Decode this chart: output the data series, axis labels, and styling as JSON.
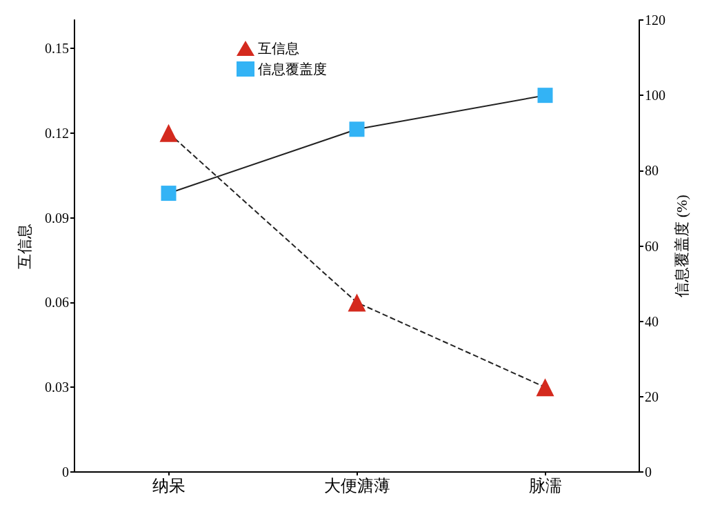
{
  "chart_data": {
    "type": "line",
    "categories": [
      "纳呆",
      "大便溏薄",
      "脉濡"
    ],
    "ylabel": "互信息",
    "y2label": "信息覆盖度 (%)",
    "series": [
      {
        "name": "互信息",
        "color": "#d42a1e",
        "values": [
          0.12,
          0.06,
          0.03
        ],
        "marker": "triangle",
        "line_style": "dashed"
      },
      {
        "name": "信息覆盖度",
        "color": "#33b3f5",
        "values": [
          74,
          91,
          100
        ],
        "axis": "y2",
        "marker": "square",
        "line_style": "solid"
      }
    ],
    "ylim": [
      0,
      0.16
    ],
    "yticks": [
      0,
      0.03,
      0.06,
      0.09,
      0.12,
      0.15
    ],
    "y2lim": [
      0,
      120
    ],
    "y2ticks": [
      0,
      20,
      40,
      60,
      80,
      100,
      120
    ],
    "legend": "top left",
    "grid": false
  }
}
